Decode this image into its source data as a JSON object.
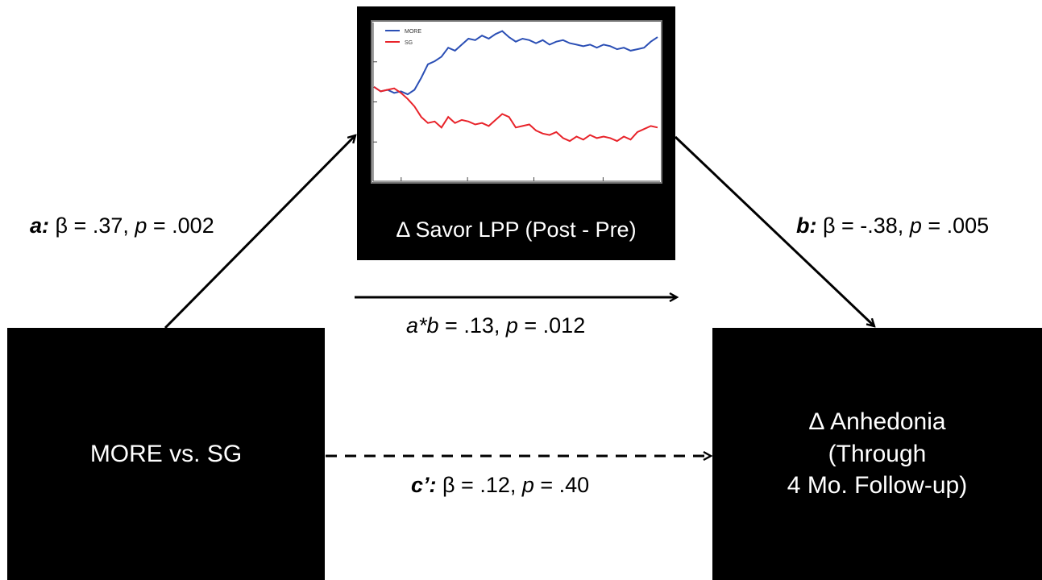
{
  "mediator": {
    "label": "Δ Savor LPP (Post - Pre)",
    "chart": {
      "legend": [
        {
          "name": "MORE",
          "color": "#2b4fb5"
        },
        {
          "name": "SG",
          "color": "#e8232a"
        }
      ]
    }
  },
  "predictor": {
    "label": "MORE vs. SG"
  },
  "outcome": {
    "line1": "Δ Anhedonia",
    "line2": "(Through",
    "line3": "4 Mo. Follow-up)"
  },
  "paths": {
    "a": {
      "name": "a:",
      "beta_text": " β = .37, ",
      "p": "p",
      "p_text": " = .002"
    },
    "b": {
      "name": "b:",
      "beta_text": " β = -.38, ",
      "p": "p",
      "p_text": " = .005"
    },
    "ab": {
      "name": "a*b",
      "text": " = .13, ",
      "p": "p",
      "p_text": " = .012"
    },
    "c": {
      "name": "c’:",
      "beta_text": " β = .12, ",
      "p": "p",
      "p_text": " = .40"
    }
  },
  "chart_data": {
    "type": "line",
    "title": "",
    "xlabel": "",
    "ylabel": "",
    "series": [
      {
        "name": "MORE",
        "color": "#2b4fb5",
        "values": [
          0.6,
          0.57,
          0.58,
          0.56,
          0.57,
          0.55,
          0.58,
          0.66,
          0.75,
          0.77,
          0.8,
          0.86,
          0.84,
          0.88,
          0.92,
          0.91,
          0.94,
          0.92,
          0.95,
          0.97,
          0.93,
          0.9,
          0.92,
          0.91,
          0.89,
          0.91,
          0.88,
          0.9,
          0.91,
          0.89,
          0.88,
          0.87,
          0.88,
          0.86,
          0.88,
          0.87,
          0.85,
          0.86,
          0.84,
          0.85,
          0.86,
          0.9,
          0.93
        ]
      },
      {
        "name": "SG",
        "color": "#e8232a",
        "values": [
          0.6,
          0.57,
          0.58,
          0.59,
          0.56,
          0.52,
          0.47,
          0.4,
          0.36,
          0.37,
          0.33,
          0.4,
          0.36,
          0.38,
          0.37,
          0.35,
          0.36,
          0.34,
          0.38,
          0.42,
          0.4,
          0.33,
          0.34,
          0.35,
          0.31,
          0.29,
          0.28,
          0.3,
          0.26,
          0.24,
          0.27,
          0.25,
          0.28,
          0.26,
          0.27,
          0.26,
          0.24,
          0.27,
          0.25,
          0.3,
          0.32,
          0.34,
          0.33
        ]
      }
    ]
  }
}
